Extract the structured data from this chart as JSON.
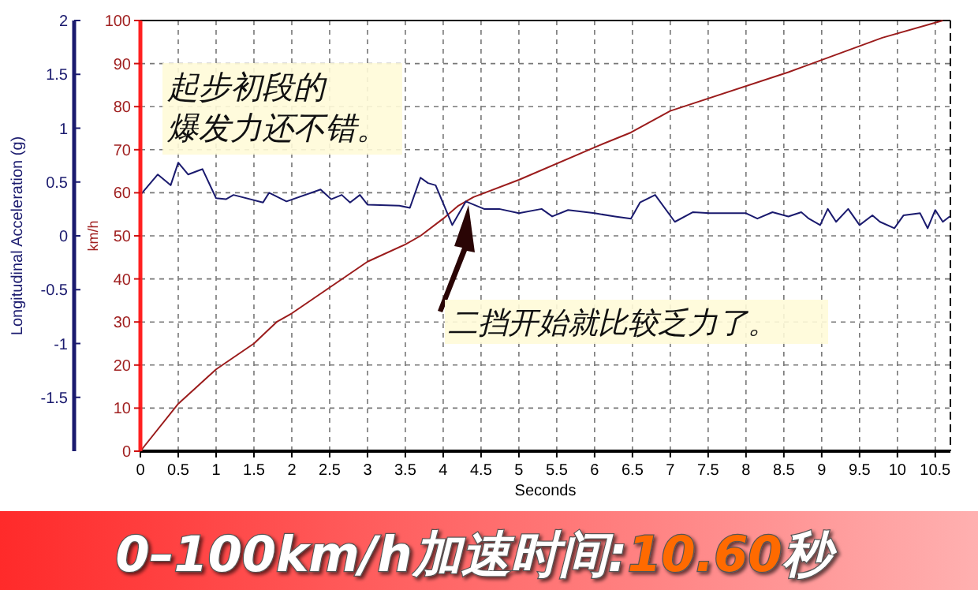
{
  "chart_data": {
    "type": "line",
    "xlabel": "Seconds",
    "ylabel": "km/h",
    "y2label": "Longitudinal Acceleration (g)",
    "xlim": [
      0,
      10.7
    ],
    "xticks": [
      0,
      0.5,
      1,
      1.5,
      2,
      2.5,
      3,
      3.5,
      4,
      4.5,
      5,
      5.5,
      6,
      6.5,
      7,
      7.5,
      8,
      8.5,
      9,
      9.5,
      10,
      10.5
    ],
    "ylim": [
      0,
      100
    ],
    "yticks": [
      0,
      10,
      20,
      30,
      40,
      50,
      60,
      70,
      80,
      90,
      100
    ],
    "y2lim": [
      -2,
      2
    ],
    "y2ticks": [
      -1.5,
      -1,
      -0.5,
      0,
      0.5,
      1,
      1.5,
      2
    ],
    "grid": true,
    "line_style": "solid",
    "series": [
      {
        "color": "#9b1c1c",
        "x": [
          0,
          0.5,
          1,
          1.5,
          1.8,
          2,
          2.5,
          3,
          3.5,
          3.7,
          4,
          4.2,
          4.4,
          5,
          6.06,
          6.48,
          7,
          8.56,
          9.8,
          10.6
        ],
        "values": [
          0,
          11,
          19,
          25,
          30,
          32,
          38,
          44,
          48,
          50,
          54,
          57,
          59,
          63,
          71,
          74,
          79,
          88,
          96,
          100
        ]
      },
      {
        "color": "#1a1a6e",
        "axis": "y2",
        "x": [
          0,
          0.23,
          0.4,
          0.5,
          0.63,
          0.82,
          1,
          1.13,
          1.23,
          1.62,
          1.7,
          1.93,
          2.38,
          2.52,
          2.66,
          2.77,
          2.9,
          3,
          3.42,
          3.56,
          3.7,
          3.8,
          3.9,
          4.12,
          4.3,
          4.54,
          4.74,
          5,
          5.3,
          5.44,
          5.65,
          6,
          6.27,
          6.48,
          6.6,
          6.8,
          7.06,
          7.3,
          7.52,
          8,
          8.15,
          8.35,
          8.56,
          8.73,
          8.83,
          8.98,
          9.08,
          9.19,
          9.35,
          9.5,
          9.67,
          9.77,
          9.96,
          10.08,
          10.3,
          10.4,
          10.5,
          10.6,
          10.69
        ],
        "values": [
          0.38,
          0.57,
          0.47,
          0.68,
          0.57,
          0.62,
          0.35,
          0.34,
          0.38,
          0.31,
          0.4,
          0.32,
          0.43,
          0.34,
          0.38,
          0.31,
          0.38,
          0.29,
          0.28,
          0.26,
          0.54,
          0.49,
          0.47,
          0.1,
          0.32,
          0.25,
          0.25,
          0.21,
          0.25,
          0.18,
          0.24,
          0.21,
          0.18,
          0.16,
          0.31,
          0.38,
          0.13,
          0.22,
          0.21,
          0.21,
          0.16,
          0.22,
          0.18,
          0.22,
          0.16,
          0.1,
          0.25,
          0.13,
          0.25,
          0.1,
          0.19,
          0.13,
          0.07,
          0.19,
          0.21,
          0.07,
          0.24,
          0.13,
          0.18
        ]
      }
    ],
    "annotations": [
      "起步初段的",
      "爆发力还不错。",
      "二挡开始就比较乏力了。",
      "0–100km/h加速时间:10.60秒"
    ]
  }
}
